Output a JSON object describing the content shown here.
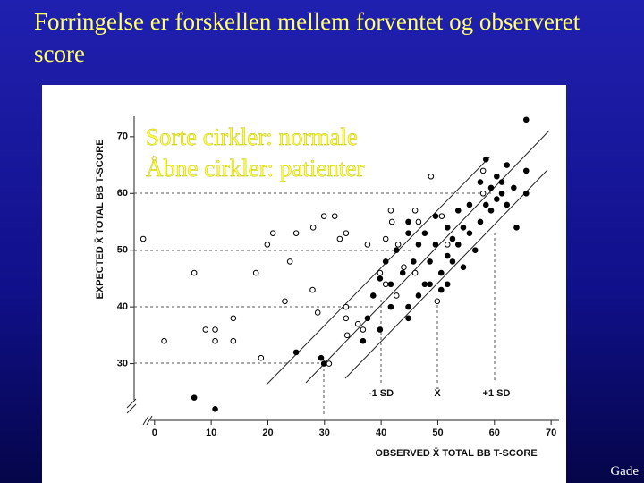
{
  "chart_data": {
    "type": "scatter",
    "title": "Forringelse er forskellen mellem forventet og observeret score",
    "annotations": [
      "Sorte cirkler: normale",
      "Åbne cirkler: patienter"
    ],
    "sd_labels": [
      "-1 SD",
      "X̄",
      "+1 SD"
    ],
    "credit": "Gade",
    "xlabel": "OBSERVED X̄  TOTAL  BB  T-SCORE",
    "ylabel": "EXPECTED X̄  TOTAL  BB  T-SCORE",
    "xlim": [
      -3.6,
      71.4
    ],
    "ylim": [
      20,
      73.6
    ],
    "xticks": [
      0,
      10,
      20,
      30,
      40,
      50,
      60,
      70
    ],
    "yticks": [
      30,
      40,
      50,
      60,
      70
    ],
    "series": [
      {
        "name": "Sorte cirkler: normale",
        "color": "#000000",
        "filled": true,
        "x": [
          7,
          10.7,
          25,
          29.4,
          29.9,
          36.8,
          37.6,
          38.6,
          39.8,
          39.8,
          40.8,
          41.7,
          41.7,
          42.7,
          43.8,
          44.8,
          44.8,
          45.7,
          46.6,
          46.6,
          47.7,
          47.7,
          48.6,
          49.6,
          49.6,
          50.6,
          50.6,
          51.7,
          51.7,
          52.6,
          52.6,
          53.6,
          53.6,
          54.5,
          54.5,
          55.6,
          55.6,
          56.6,
          57.5,
          57.5,
          58.5,
          58.5,
          59.4,
          59.4,
          60.4,
          60.4,
          61.3,
          61.3,
          62.2,
          62.2,
          63.4,
          63.9,
          65.6,
          65.6,
          65.6,
          44.8,
          48.6,
          44.8,
          51.7
        ],
        "values": [
          24,
          22,
          32,
          31,
          30,
          34,
          38,
          42,
          36,
          45,
          48,
          44,
          40,
          50,
          46,
          38,
          53,
          48,
          42,
          51,
          44,
          53,
          48,
          51,
          56,
          46,
          43,
          49,
          54,
          52,
          48,
          57,
          51,
          54,
          47,
          53,
          58,
          50,
          55,
          62,
          58,
          66,
          61,
          57,
          63,
          59,
          60,
          62,
          65,
          58,
          61,
          54,
          73,
          64,
          60,
          40,
          44,
          55,
          44
        ]
      },
      {
        "name": "Åbne cirkler: patienter",
        "color": "#000000",
        "filled": false,
        "x": [
          -2,
          1.7,
          7,
          9,
          10.7,
          10.7,
          13.9,
          13.9,
          17.9,
          18.8,
          19.9,
          20.9,
          23,
          23.9,
          25,
          28,
          27.9,
          28.8,
          29.9,
          31.8,
          32.7,
          33.8,
          33.8,
          33.8,
          34,
          30.8,
          35.9,
          36.8,
          37.6,
          39.8,
          40.8,
          41.7,
          41.9,
          43,
          44,
          46,
          46.6,
          48.8,
          49.9,
          50.7,
          51.7,
          58,
          58,
          46,
          40.8,
          42.7
        ],
        "values": [
          52,
          34,
          46,
          36,
          34,
          36,
          34,
          38,
          46,
          31,
          51,
          53,
          41,
          48,
          53,
          54,
          43,
          39,
          56,
          56,
          52,
          53,
          40,
          38,
          35,
          30,
          37,
          36,
          51,
          46,
          52,
          57,
          55,
          51,
          47,
          57,
          55,
          63,
          41,
          56,
          51,
          64,
          60,
          46,
          44,
          42
        ]
      }
    ]
  }
}
